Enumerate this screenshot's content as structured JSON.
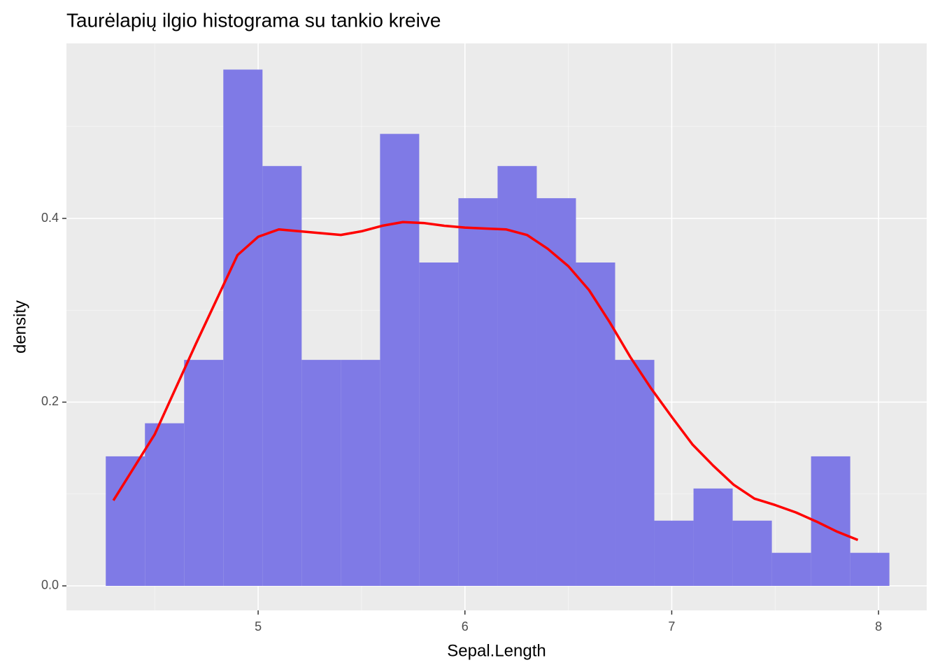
{
  "chart_data": {
    "type": "histogram",
    "title": "Taurėlapių ilgio histograma su tankio kreive",
    "x_label": "Sepal.Length",
    "y_label": "density",
    "bins": [
      4.2632,
      4.4526,
      4.6421,
      4.8316,
      5.0211,
      5.2105,
      5.4,
      5.5895,
      5.7789,
      5.9684,
      6.1579,
      6.3474,
      6.5368,
      6.7263,
      6.9158,
      7.1053,
      7.2947,
      7.4842,
      7.6737,
      7.8632,
      8.0526
    ],
    "values": [
      0.141,
      0.177,
      0.246,
      0.562,
      0.457,
      0.246,
      0.246,
      0.492,
      0.352,
      0.422,
      0.457,
      0.422,
      0.352,
      0.246,
      0.071,
      0.106,
      0.071,
      0.036,
      0.141,
      0.036
    ],
    "color": "#7f7ae6",
    "density": {
      "color": "#ff0000",
      "x": [
        4.3,
        4.5,
        4.7,
        4.9,
        5.0,
        5.1,
        5.2,
        5.3,
        5.4,
        5.5,
        5.6,
        5.7,
        5.8,
        5.9,
        6.0,
        6.1,
        6.2,
        6.3,
        6.4,
        6.5,
        6.6,
        6.7,
        6.8,
        6.9,
        7.0,
        7.1,
        7.2,
        7.3,
        7.4,
        7.5,
        7.6,
        7.7,
        7.8,
        7.9
      ],
      "values": [
        0.093,
        0.165,
        0.264,
        0.36,
        0.38,
        0.388,
        0.386,
        0.384,
        0.382,
        0.386,
        0.392,
        0.396,
        0.395,
        0.392,
        0.39,
        0.389,
        0.388,
        0.382,
        0.367,
        0.348,
        0.322,
        0.287,
        0.249,
        0.215,
        0.184,
        0.154,
        0.131,
        0.11,
        0.095,
        0.088,
        0.08,
        0.07,
        0.059,
        0.05
      ]
    },
    "xlim": [
      4.073,
      8.233
    ],
    "ylim": [
      -0.0267,
      0.5905
    ],
    "xticks": [
      5,
      6,
      7,
      8
    ],
    "yticks": [
      {
        "value": 0,
        "label": "0.0"
      },
      0.2,
      0.4
    ],
    "xminor": [
      4.5,
      5.5,
      6.5,
      7.5
    ],
    "yminor": [
      0.1,
      0.3,
      0.5
    ],
    "grid": true
  }
}
